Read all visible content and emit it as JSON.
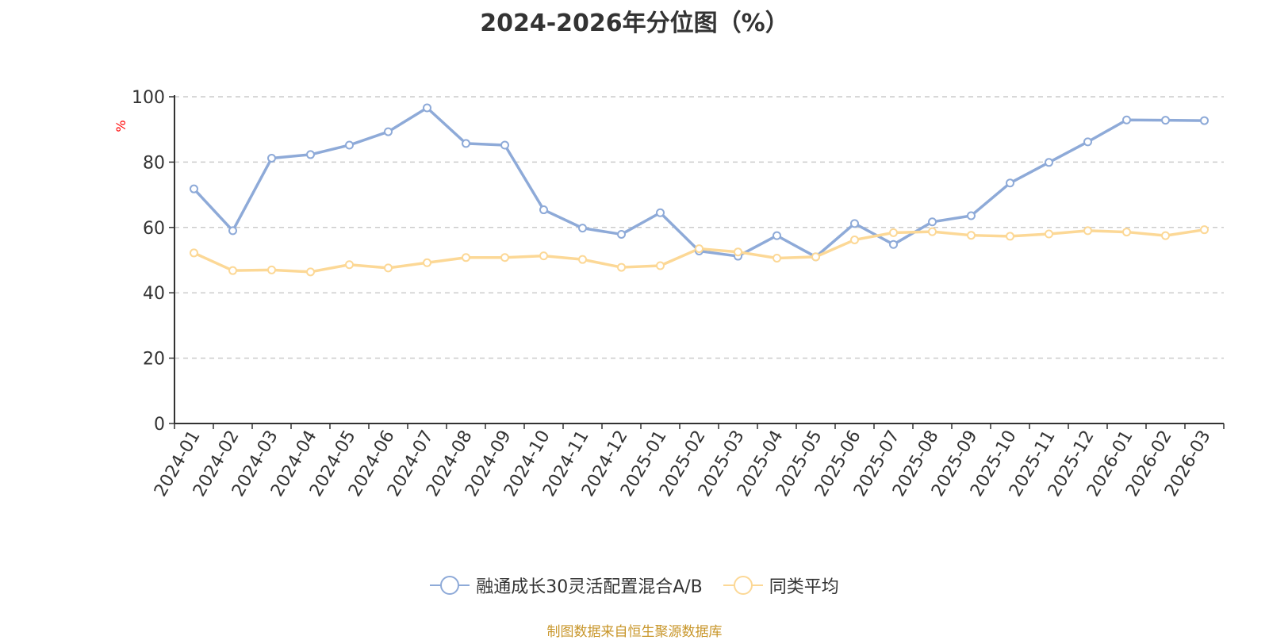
{
  "source_text": "制图数据来自恒生聚源数据库",
  "chart_data": {
    "type": "line",
    "title": "2024-2026年分位图（%）",
    "ylabel": "%",
    "ylim": [
      0,
      100
    ],
    "yticks": [
      0,
      20,
      40,
      60,
      80,
      100
    ],
    "grid": true,
    "legend_position": "bottom",
    "categories": [
      "2024-01",
      "2024-02",
      "2024-03",
      "2024-04",
      "2024-05",
      "2024-06",
      "2024-07",
      "2024-08",
      "2024-09",
      "2024-10",
      "2024-11",
      "2024-12",
      "2025-01",
      "2025-02",
      "2025-03",
      "2025-04",
      "2025-05",
      "2025-06",
      "2025-07",
      "2025-08",
      "2025-09",
      "2025-10",
      "2025-11",
      "2025-12",
      "2026-01",
      "2026-02",
      "2026-03"
    ],
    "series": [
      {
        "name": "融通成长30灵活配置混合A/B",
        "color": "#8eaad8",
        "values": [
          71.8,
          59.0,
          81.2,
          82.3,
          85.2,
          89.3,
          96.6,
          85.7,
          85.2,
          65.4,
          59.8,
          57.9,
          64.5,
          52.8,
          51.2,
          57.5,
          51.0,
          61.2,
          54.8,
          61.7,
          63.6,
          73.6,
          79.9,
          86.2,
          92.9,
          92.8,
          92.7
        ]
      },
      {
        "name": "同类平均",
        "color": "#fcd896",
        "values": [
          52.2,
          46.8,
          47.0,
          46.4,
          48.6,
          47.6,
          49.2,
          50.8,
          50.8,
          51.3,
          50.2,
          47.8,
          48.3,
          53.5,
          52.5,
          50.6,
          51.0,
          56.2,
          58.4,
          58.7,
          57.6,
          57.3,
          58.0,
          59.0,
          58.6,
          57.5,
          59.3
        ]
      }
    ]
  }
}
